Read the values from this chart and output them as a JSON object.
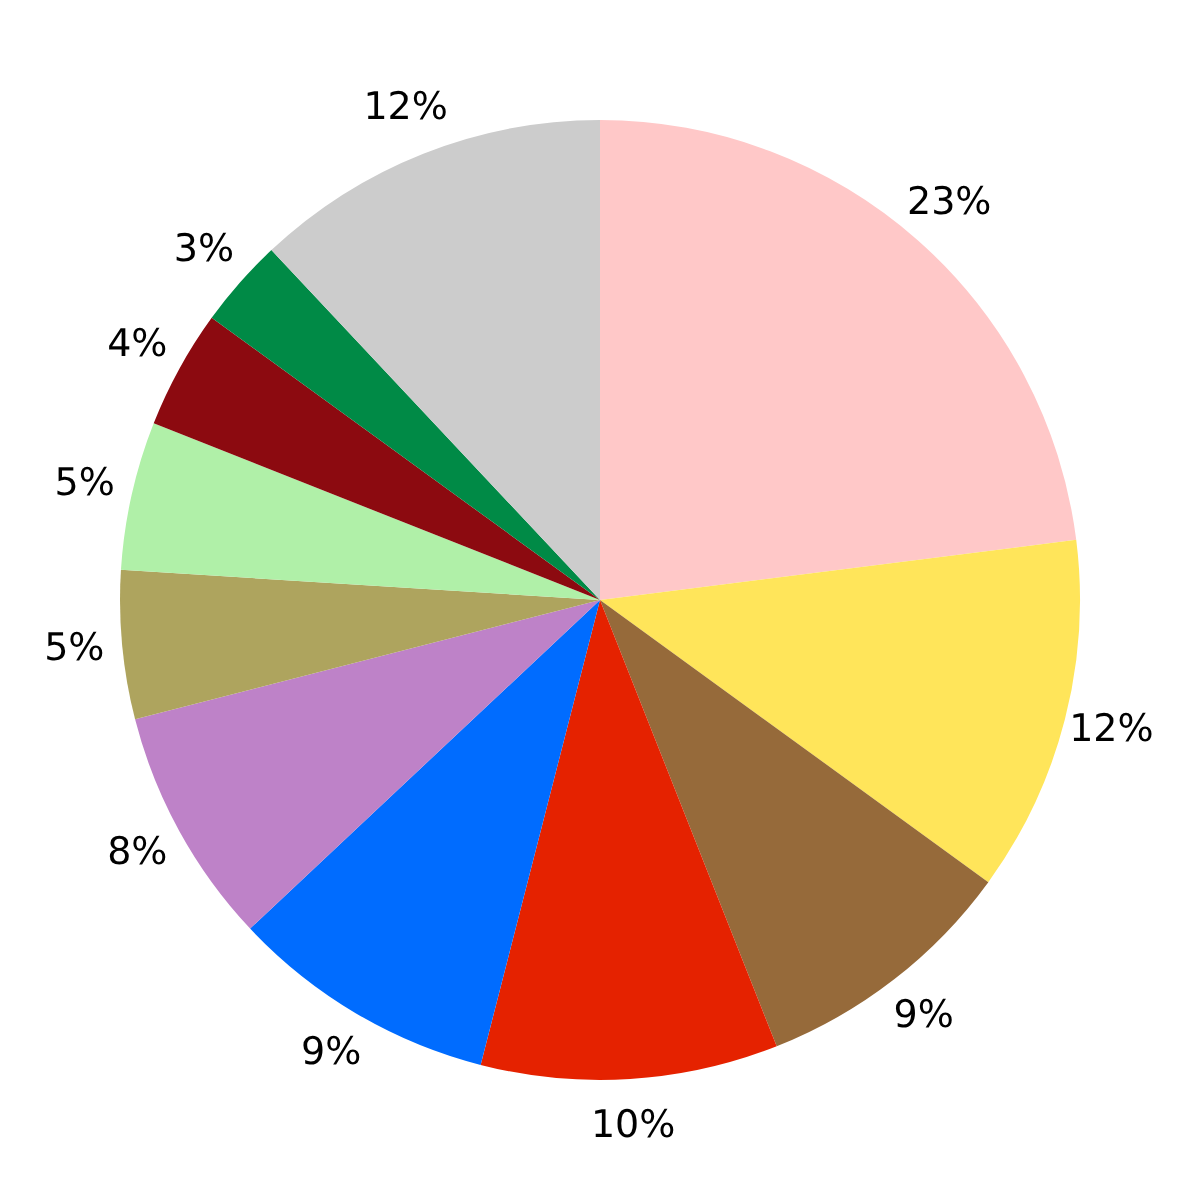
{
  "chart_data": {
    "type": "pie",
    "categories": [
      null,
      null,
      null,
      null,
      null,
      null,
      null,
      null,
      null,
      null,
      null
    ],
    "values": [
      23,
      12,
      9,
      10,
      9,
      8,
      5,
      5,
      4,
      3,
      12
    ],
    "colors": [
      "#ffc8c8",
      "#ffe55a",
      "#966a3a",
      "#e52200",
      "#006cff",
      "#be82c8",
      "#aea45e",
      "#b0f0a8",
      "#8c0a10",
      "#008a46",
      "#cccccc"
    ],
    "value_labels": [
      "23%",
      "12%",
      "9%",
      "10%",
      "9%",
      "8%",
      "5%",
      "5%",
      "4%",
      "3%",
      "12%"
    ],
    "legend": false
  }
}
